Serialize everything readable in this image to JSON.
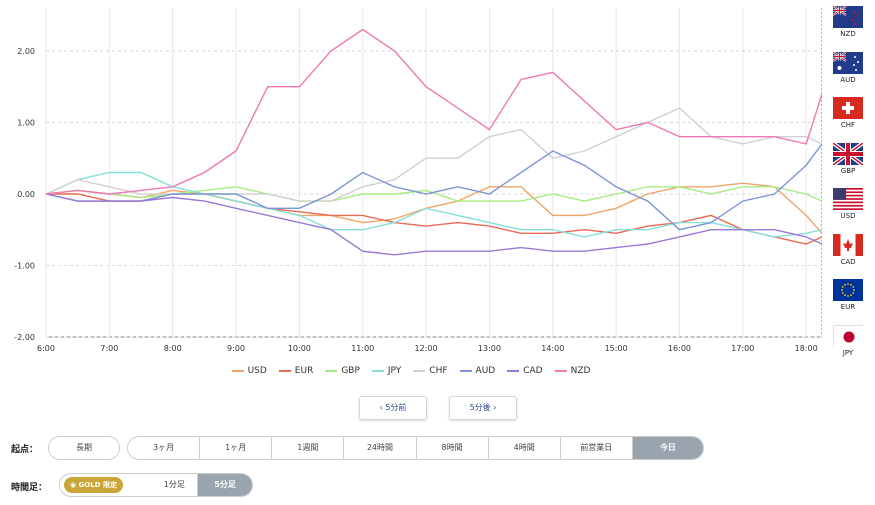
{
  "chart_data": {
    "type": "line",
    "x_ticks": [
      "6:00",
      "7:00",
      "8:00",
      "9:00",
      "10:00",
      "11:00",
      "12:00",
      "13:00",
      "14:00",
      "15:00",
      "16:00",
      "17:00",
      "18:00"
    ],
    "x_range": [
      "6:00",
      "18:15"
    ],
    "y_ticks": [
      "2.00",
      "1.00",
      "0.00",
      "-1.00",
      "-2.00"
    ],
    "ylim": [
      -2,
      2.6
    ],
    "grid": true,
    "legend_position": "bottom",
    "x": [
      "6:00",
      "6:30",
      "7:00",
      "7:30",
      "8:00",
      "8:30",
      "9:00",
      "9:30",
      "10:00",
      "10:30",
      "11:00",
      "11:30",
      "12:00",
      "12:30",
      "13:00",
      "13:30",
      "14:00",
      "14:30",
      "15:00",
      "15:30",
      "16:00",
      "16:30",
      "17:00",
      "17:30",
      "18:00",
      "18:15"
    ],
    "series": [
      {
        "name": "USD",
        "color": "#f2a465",
        "values": [
          0.0,
          0.05,
          0.0,
          -0.05,
          0.05,
          0.0,
          -0.1,
          -0.2,
          -0.3,
          -0.3,
          -0.4,
          -0.35,
          -0.2,
          -0.1,
          0.1,
          0.1,
          -0.3,
          -0.3,
          -0.2,
          0.0,
          0.1,
          0.1,
          0.15,
          0.1,
          -0.3,
          -0.55
        ]
      },
      {
        "name": "EUR",
        "color": "#e96a55",
        "values": [
          0.0,
          0.0,
          -0.1,
          -0.1,
          0.0,
          0.0,
          -0.1,
          -0.2,
          -0.25,
          -0.3,
          -0.3,
          -0.4,
          -0.45,
          -0.4,
          -0.45,
          -0.55,
          -0.55,
          -0.5,
          -0.55,
          -0.45,
          -0.4,
          -0.3,
          -0.5,
          -0.6,
          -0.7,
          -0.6
        ]
      },
      {
        "name": "GBP",
        "color": "#a8ec85",
        "values": [
          0.0,
          0.05,
          0.0,
          -0.05,
          0.0,
          0.05,
          0.1,
          0.0,
          -0.1,
          -0.1,
          0.0,
          0.0,
          0.05,
          -0.1,
          -0.1,
          -0.1,
          0.0,
          -0.1,
          0.0,
          0.1,
          0.1,
          0.0,
          0.1,
          0.1,
          0.0,
          -0.1
        ]
      },
      {
        "name": "JPY",
        "color": "#85e0d8",
        "values": [
          0.0,
          0.2,
          0.3,
          0.3,
          0.1,
          0.0,
          -0.1,
          -0.2,
          -0.3,
          -0.5,
          -0.5,
          -0.4,
          -0.2,
          -0.3,
          -0.4,
          -0.5,
          -0.5,
          -0.6,
          -0.5,
          -0.5,
          -0.4,
          -0.4,
          -0.5,
          -0.6,
          -0.55,
          -0.5
        ]
      },
      {
        "name": "CHF",
        "color": "#d0d0d0",
        "values": [
          0.0,
          0.2,
          0.1,
          0.0,
          0.0,
          0.0,
          0.0,
          0.0,
          -0.1,
          -0.1,
          0.1,
          0.2,
          0.5,
          0.5,
          0.8,
          0.9,
          0.5,
          0.6,
          0.8,
          1.0,
          1.2,
          0.8,
          0.7,
          0.8,
          0.8,
          0.7
        ]
      },
      {
        "name": "AUD",
        "color": "#7d95d8",
        "values": [
          0.0,
          -0.1,
          -0.1,
          -0.1,
          0.0,
          0.0,
          0.0,
          -0.2,
          -0.2,
          0.0,
          0.3,
          0.1,
          0.0,
          0.1,
          0.0,
          0.3,
          0.6,
          0.4,
          0.1,
          -0.1,
          -0.5,
          -0.4,
          -0.1,
          0.0,
          0.4,
          0.7
        ]
      },
      {
        "name": "CAD",
        "color": "#9b78d6",
        "values": [
          0.0,
          -0.1,
          -0.1,
          -0.1,
          -0.05,
          -0.1,
          -0.2,
          -0.3,
          -0.4,
          -0.5,
          -0.8,
          -0.85,
          -0.8,
          -0.8,
          -0.8,
          -0.75,
          -0.8,
          -0.8,
          -0.75,
          -0.7,
          -0.6,
          -0.5,
          -0.5,
          -0.5,
          -0.6,
          -0.7
        ]
      },
      {
        "name": "NZD",
        "color": "#ee79b3",
        "values": [
          0.0,
          0.05,
          0.0,
          0.05,
          0.1,
          0.3,
          0.6,
          1.5,
          1.5,
          2.0,
          2.3,
          2.0,
          1.5,
          1.2,
          0.9,
          1.6,
          1.7,
          1.3,
          0.9,
          1.0,
          0.8,
          0.8,
          0.8,
          0.8,
          0.7,
          1.4
        ]
      }
    ]
  },
  "flags": [
    {
      "code": "NZD",
      "icon": "nz-flag-icon"
    },
    {
      "code": "AUD",
      "icon": "au-flag-icon"
    },
    {
      "code": "CHF",
      "icon": "ch-flag-icon"
    },
    {
      "code": "GBP",
      "icon": "gb-flag-icon"
    },
    {
      "code": "USD",
      "icon": "us-flag-icon"
    },
    {
      "code": "CAD",
      "icon": "ca-flag-icon"
    },
    {
      "code": "EUR",
      "icon": "eu-flag-icon"
    },
    {
      "code": "JPY",
      "icon": "jp-flag-icon"
    }
  ],
  "nav": {
    "prev_label": "5分前",
    "next_label": "5分後"
  },
  "start_point": {
    "label": "起点：",
    "first": "長期",
    "options": [
      "3ヶ月",
      "1ヶ月",
      "1週間",
      "24時間",
      "8時間",
      "4時間",
      "前営業日",
      "今日"
    ],
    "selected": "今日"
  },
  "timeframe": {
    "label": "時間足：",
    "gold_text": "GOLD",
    "gold_limited": "限定",
    "options": [
      "1分足",
      "5分足"
    ],
    "selected": "5分足"
  }
}
